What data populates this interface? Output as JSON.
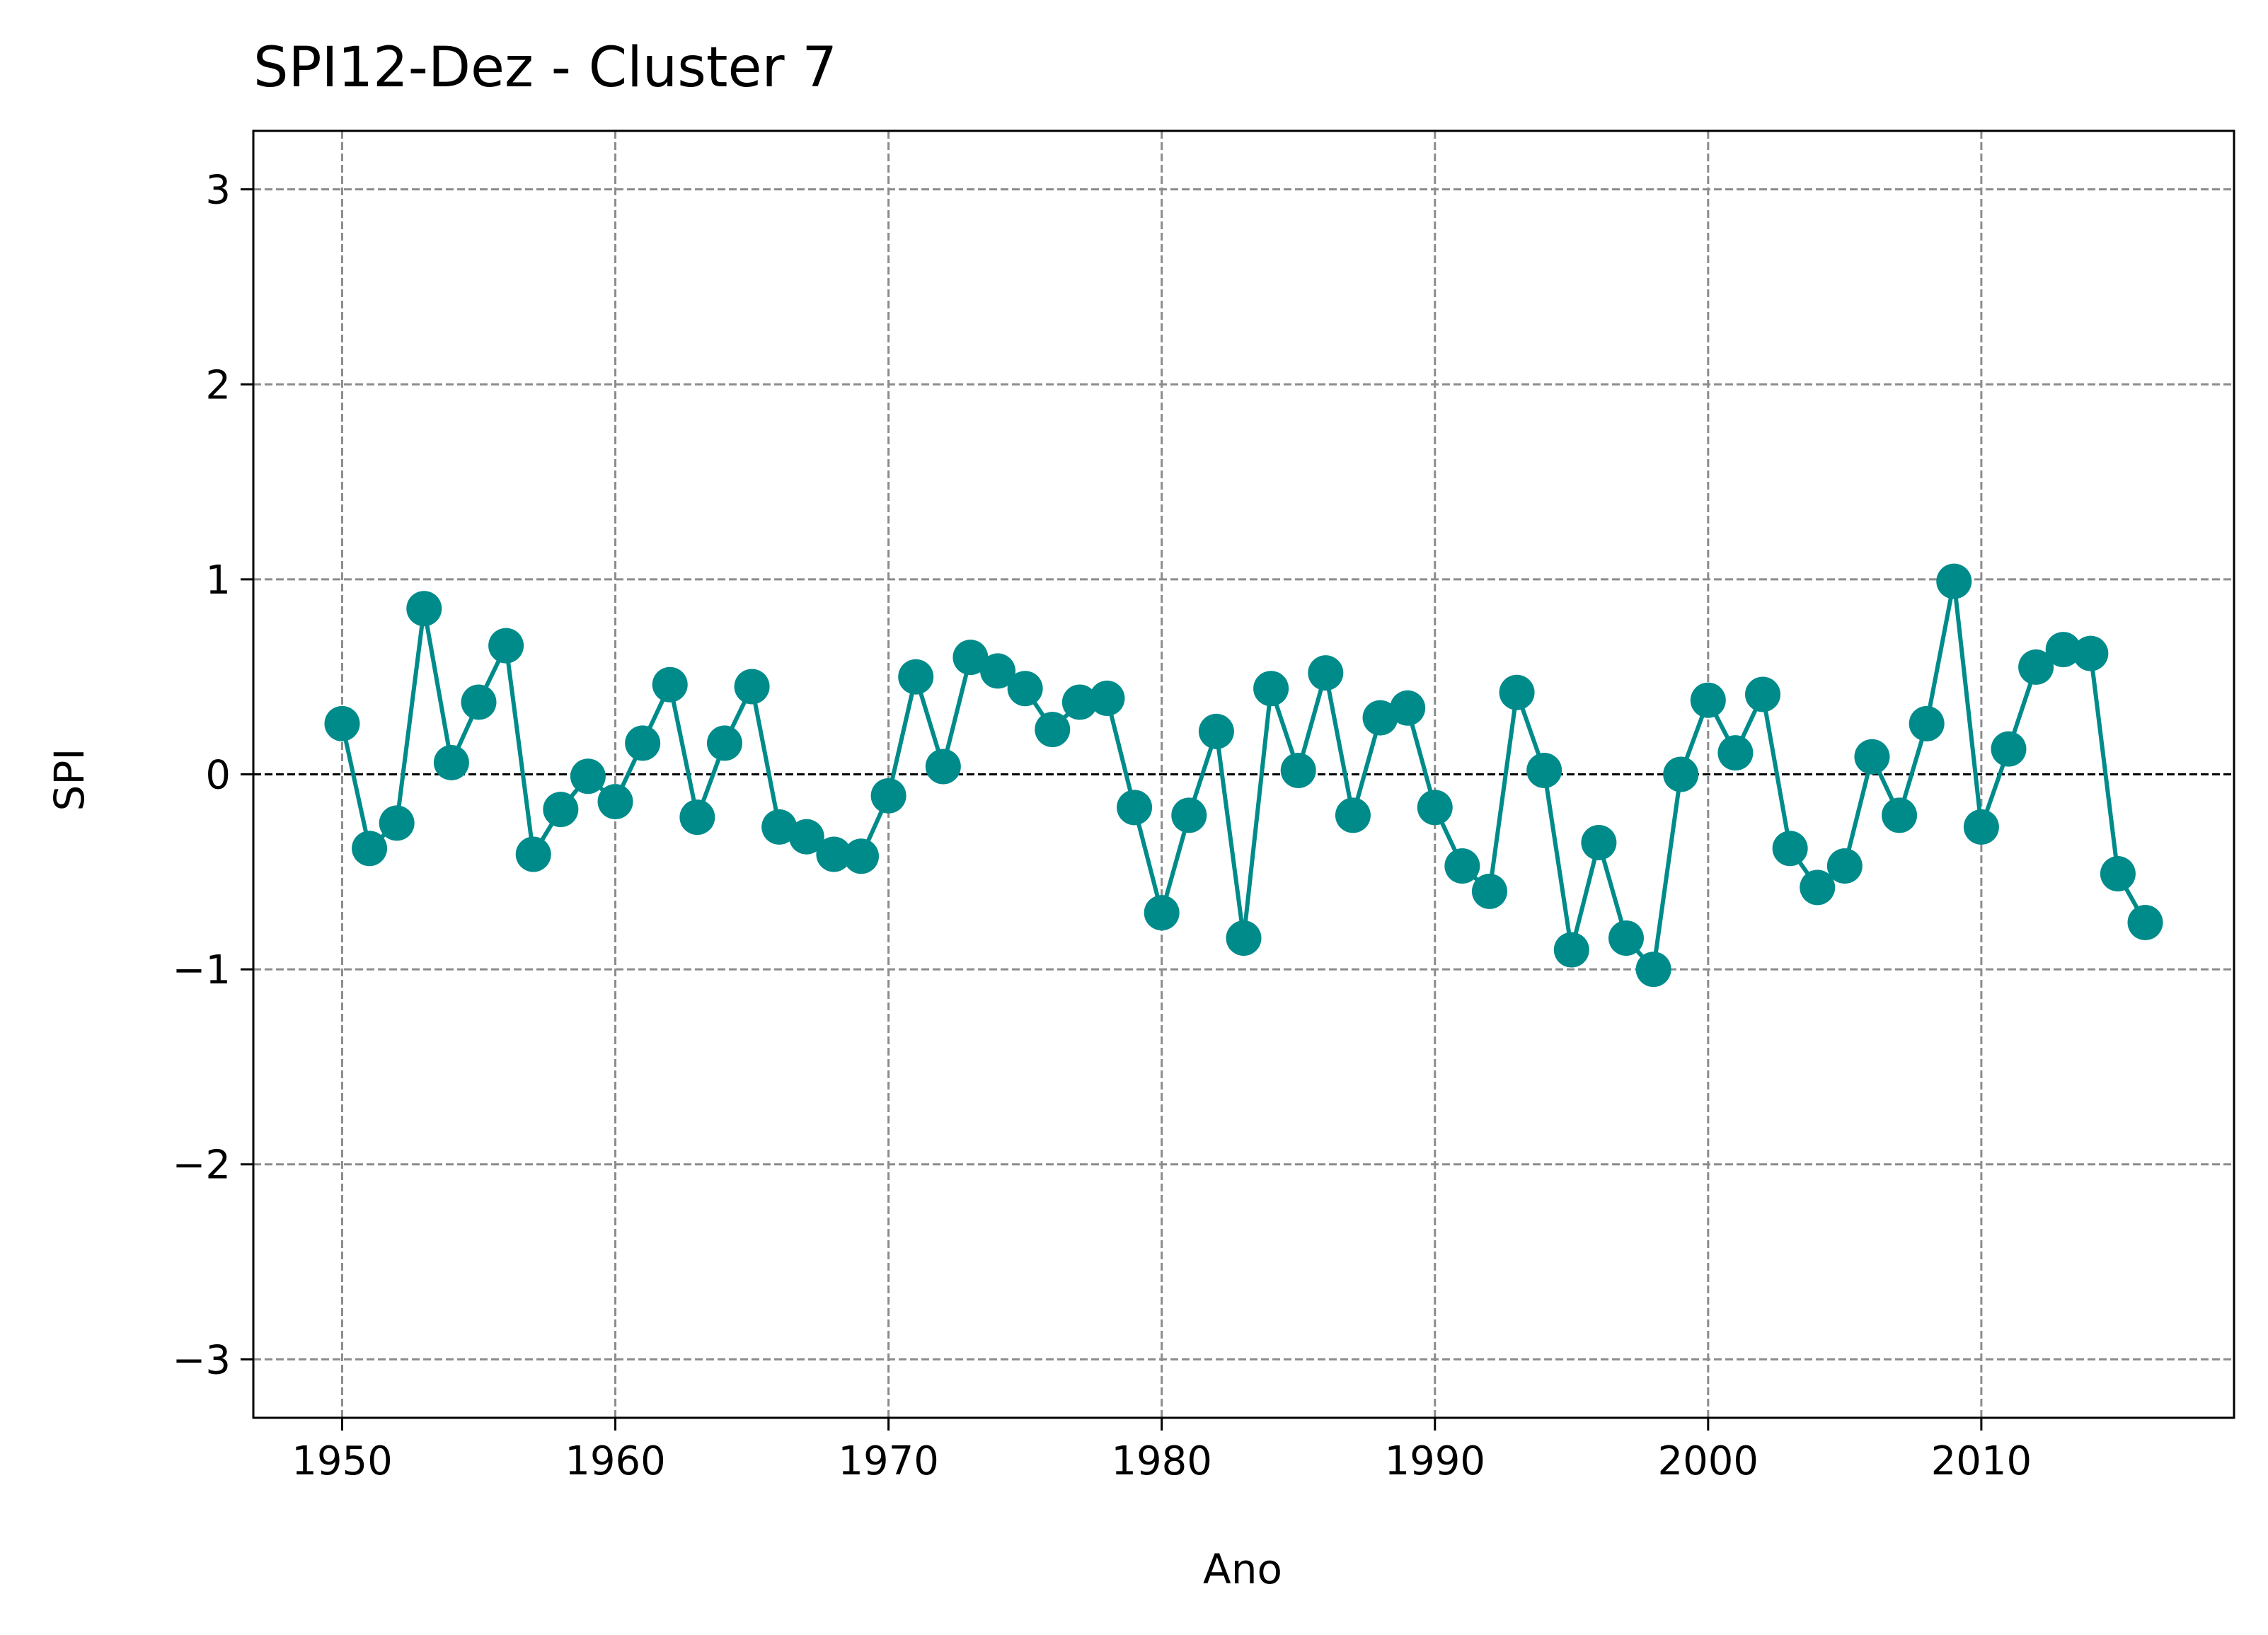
{
  "chart_data": {
    "type": "line",
    "title": "SPI12-Dez - Cluster 7",
    "xlabel": "Ano",
    "ylabel": "SPI",
    "xlim": [
      1946.75,
      2019.25
    ],
    "ylim": [
      -3.3,
      3.3
    ],
    "xticks": [
      1950,
      1960,
      1970,
      1980,
      1990,
      2000,
      2010
    ],
    "yticks": [
      3,
      2,
      1,
      0,
      -1,
      -2,
      -3
    ],
    "ytick_labels": [
      "3",
      "2",
      "1",
      "0",
      "−1",
      "−2",
      "−3"
    ],
    "grid": true,
    "reference_line_y": 0,
    "colors": {
      "series": "#008B8B",
      "grid": "#8c8c8c",
      "zero_line": "#000000"
    },
    "series": [
      {
        "x": [
          1950,
          1951,
          1952,
          1953,
          1954,
          1955,
          1956,
          1957,
          1958,
          1959,
          1960,
          1961,
          1962,
          1963,
          1964,
          1965,
          1966,
          1967,
          1968,
          1969,
          1970,
          1971,
          1972,
          1973,
          1974,
          1975,
          1976,
          1977,
          1978,
          1979,
          1980,
          1981,
          1982,
          1983,
          1984,
          1985,
          1986,
          1987,
          1988,
          1989,
          1990,
          1991,
          1992,
          1993,
          1994,
          1995,
          1996,
          1997,
          1998,
          1999,
          2000,
          2001,
          2002,
          2003,
          2004,
          2005,
          2006,
          2007,
          2008,
          2009,
          2010,
          2011,
          2012,
          2013,
          2014,
          2015,
          2016
        ],
        "values": [
          0.26,
          -0.38,
          -0.25,
          0.85,
          0.06,
          0.37,
          0.66,
          -0.41,
          -0.18,
          -0.01,
          -0.14,
          0.16,
          0.46,
          -0.22,
          0.16,
          0.45,
          -0.27,
          -0.32,
          -0.41,
          -0.42,
          -0.11,
          0.5,
          0.04,
          0.6,
          0.53,
          0.44,
          0.23,
          0.37,
          0.39,
          -0.17,
          -0.71,
          -0.21,
          0.22,
          -0.84,
          0.44,
          0.02,
          0.52,
          -0.21,
          0.29,
          0.34,
          -0.17,
          -0.47,
          -0.6,
          0.42,
          0.02,
          -0.9,
          -0.35,
          -0.84,
          -1.0,
          0.0,
          0.38,
          0.11,
          0.41,
          -0.38,
          -0.58,
          -0.47,
          0.09,
          -0.21,
          0.26,
          0.99,
          -0.27,
          0.13,
          0.55,
          0.64,
          0.62,
          -0.51,
          -0.76
        ]
      }
    ]
  }
}
